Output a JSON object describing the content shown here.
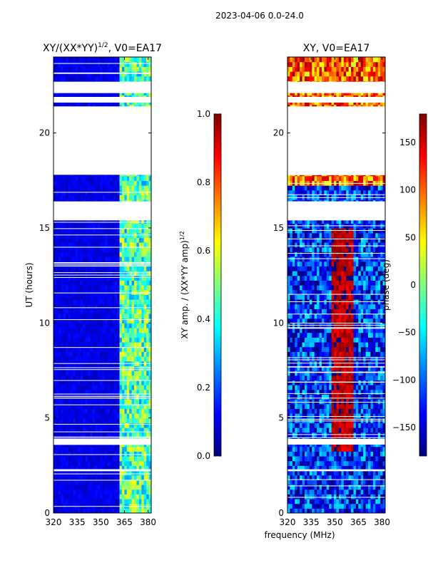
{
  "figure": {
    "suptitle": "2023-04-06 0.0-24.0",
    "xlabel": "frequency (MHz)",
    "ylabel": "UT (hours)"
  },
  "colormap": {
    "name": "jet",
    "stops": [
      "#00007f",
      "#0000ff",
      "#007fff",
      "#00ffff",
      "#7fff7f",
      "#ffff00",
      "#ff7f00",
      "#ff0000",
      "#7f0000"
    ]
  },
  "chart_data": [
    {
      "type": "heatmap",
      "title": "XY/(XX*YY)",
      "title_sup": "1/2",
      "title_suffix": ", V0=EA17",
      "xlim": [
        320,
        382
      ],
      "ylim": [
        0,
        24
      ],
      "xticks": [
        320,
        335,
        350,
        365,
        380
      ],
      "yticks": [
        0,
        5,
        10,
        15,
        20
      ],
      "xtick_labels": [
        "320",
        "335",
        "350",
        "365",
        "380"
      ],
      "ytick_labels": [
        "0",
        "5",
        "10",
        "15",
        "20"
      ],
      "data_gaps_ut": [
        [
          2.2,
          2.3
        ],
        [
          3.6,
          3.9
        ],
        [
          15.4,
          16.4
        ],
        [
          17.8,
          21.4
        ],
        [
          21.6,
          21.9
        ],
        [
          22.1,
          22.7
        ]
      ],
      "colorbar": {
        "label": "XY amp. / (XX*YY amp)",
        "label_sup": "1/2",
        "range": [
          0.0,
          1.0
        ],
        "ticks": [
          0.0,
          0.2,
          0.4,
          0.6,
          0.8,
          1.0
        ],
        "tick_labels": [
          "0.0",
          "0.2",
          "0.4",
          "0.6",
          "0.8",
          "1.0"
        ]
      },
      "description_values": {
        "low_band_mhz": [
          320,
          362
        ],
        "low_band_amp": 0.1,
        "high_band_mhz": [
          362,
          382
        ],
        "high_band_amp": 0.45
      }
    },
    {
      "type": "heatmap",
      "title": "XY, V0=EA17",
      "xlim": [
        320,
        382
      ],
      "ylim": [
        0,
        24
      ],
      "xticks": [
        320,
        335,
        350,
        365,
        380
      ],
      "yticks": [
        0,
        5,
        10,
        15,
        20
      ],
      "xtick_labels": [
        "320",
        "335",
        "350",
        "365",
        "380"
      ],
      "ytick_labels": [
        "0",
        "5",
        "10",
        "15",
        "20"
      ],
      "data_gaps_ut": [
        [
          2.2,
          2.3
        ],
        [
          3.6,
          3.9
        ],
        [
          15.4,
          16.4
        ],
        [
          17.8,
          21.4
        ],
        [
          21.6,
          21.9
        ],
        [
          22.1,
          22.7
        ]
      ],
      "colorbar": {
        "label": "phase (deg)",
        "range": [
          -180,
          180
        ],
        "ticks": [
          -150,
          -100,
          -50,
          0,
          50,
          100,
          150
        ],
        "tick_labels": [
          "−150",
          "−100",
          "−50",
          "0",
          "50",
          "100",
          "150"
        ]
      },
      "description_values": {
        "phase_center_mhz": [
          348,
          362
        ],
        "phase_center_deg": 160,
        "phase_edges_deg": -120
      }
    }
  ]
}
